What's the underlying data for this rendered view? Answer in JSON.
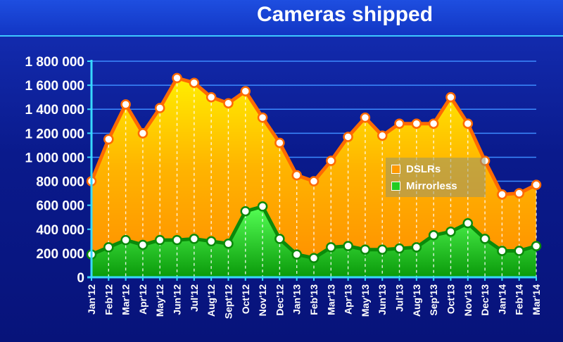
{
  "chart_data": {
    "type": "area",
    "title": "Cameras shipped",
    "categories": [
      "Jan'12",
      "Feb'12",
      "Mar'12",
      "Apr'12",
      "May'12",
      "Jun'12",
      "Jul'12",
      "Aug'12",
      "Sept'12",
      "Oct'12",
      "Nov'12",
      "Dec'12",
      "Jan'13",
      "Feb'13",
      "Mar'13",
      "Apr'13",
      "May'13",
      "Jun'13",
      "Jul'13",
      "Aug'13",
      "Sep'13",
      "Oct'13",
      "Nov'13",
      "Dec'13",
      "Jan'14",
      "Feb'14",
      "Mar'14"
    ],
    "ylim": [
      0,
      1800000
    ],
    "yticks": [
      0,
      200000,
      400000,
      600000,
      800000,
      1000000,
      1200000,
      1400000,
      1600000,
      1800000
    ],
    "ytick_labels": [
      "0",
      "200 000",
      "400 000",
      "600 000",
      "800 000",
      "1 000 000",
      "1 200 000",
      "1 400 000",
      "1 600 000",
      "1 800 000"
    ],
    "grid": true,
    "legend_position": "right",
    "series": [
      {
        "name": "DSLRs",
        "color": "#ff9a00",
        "line_color": "#ff6a00",
        "values": [
          800000,
          1150000,
          1440000,
          1200000,
          1410000,
          1660000,
          1620000,
          1500000,
          1450000,
          1550000,
          1330000,
          1120000,
          850000,
          800000,
          970000,
          1170000,
          1330000,
          1180000,
          1280000,
          1280000,
          1280000,
          1500000,
          1280000,
          970000,
          690000,
          700000,
          770000
        ]
      },
      {
        "name": "Mirrorless",
        "color": "#22cc22",
        "line_color": "#0a8a0a",
        "values": [
          190000,
          250000,
          310000,
          270000,
          310000,
          310000,
          320000,
          300000,
          280000,
          550000,
          590000,
          320000,
          190000,
          160000,
          250000,
          260000,
          230000,
          230000,
          240000,
          250000,
          350000,
          380000,
          450000,
          320000,
          220000,
          220000,
          260000
        ]
      }
    ]
  }
}
